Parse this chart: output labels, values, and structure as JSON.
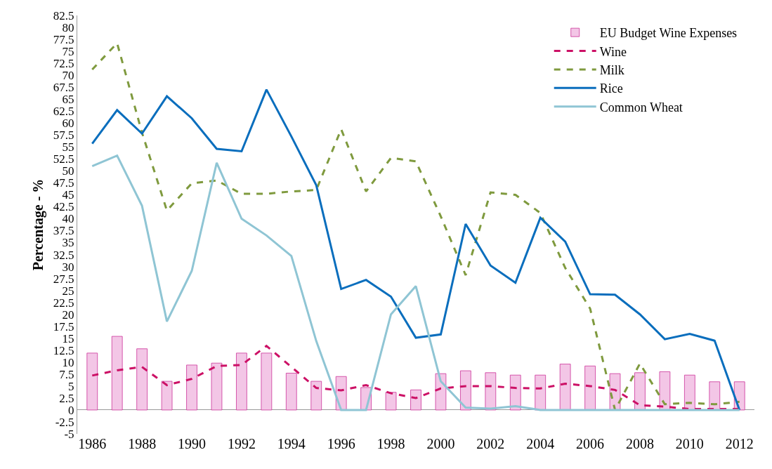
{
  "chart_data": {
    "type": "line",
    "ylabel": "Percentage - %",
    "x": [
      1986,
      1987,
      1988,
      1989,
      1990,
      1991,
      1992,
      1993,
      1994,
      1995,
      1996,
      1997,
      1998,
      1999,
      2000,
      2001,
      2002,
      2003,
      2004,
      2005,
      2006,
      2007,
      2008,
      2009,
      2010,
      2011,
      2012
    ],
    "xlim": [
      1985.4,
      2012.6
    ],
    "xticks": [
      1986,
      1988,
      1990,
      1992,
      1994,
      1996,
      1998,
      2000,
      2002,
      2004,
      2006,
      2008,
      2010,
      2012
    ],
    "ylim": [
      -5,
      82.5
    ],
    "yticks": [
      -5,
      -2.5,
      0,
      2.5,
      5,
      7.5,
      10,
      12.5,
      15,
      17.5,
      20,
      22.5,
      25,
      27.5,
      30,
      32.5,
      35,
      37.5,
      40,
      42.5,
      45,
      47.5,
      50,
      52.5,
      55,
      57.5,
      60,
      62.5,
      65,
      67.5,
      70,
      72.5,
      75,
      77.5,
      80,
      82.5
    ],
    "grid": false,
    "legend": "top right",
    "series": [
      {
        "name": "EU Budget Wine Expenses",
        "type": "bar",
        "color": "#f3c6e6",
        "values": [
          11.9,
          15.4,
          12.8,
          6.0,
          9.4,
          9.8,
          11.9,
          11.9,
          7.7,
          6.0,
          7.0,
          4.7,
          3.7,
          4.2,
          7.6,
          8.2,
          7.8,
          7.3,
          7.3,
          9.6,
          9.2,
          7.6,
          7.8,
          8.0,
          7.3,
          5.9,
          5.9
        ]
      },
      {
        "name": "Wine",
        "color": "#cc1166",
        "line_style": "dashed",
        "values": [
          7.2,
          8.3,
          9.0,
          5.2,
          6.5,
          9.2,
          9.4,
          13.4,
          9.0,
          4.6,
          4.1,
          5.2,
          3.5,
          2.5,
          4.5,
          5.0,
          5.0,
          4.6,
          4.5,
          5.5,
          5.0,
          4.2,
          1.0,
          0.7,
          0.2,
          0.2,
          0.2
        ]
      },
      {
        "name": "Milk",
        "color": "#7f9a3e",
        "line_style": "dashed",
        "values": [
          71.2,
          76.7,
          58.0,
          41.7,
          47.4,
          48.0,
          45.2,
          45.2,
          45.7,
          46.0,
          58.7,
          45.7,
          52.7,
          52.0,
          40.5,
          28.2,
          45.5,
          45.0,
          41.2,
          29.7,
          21.2,
          0,
          9.7,
          1.2,
          1.5,
          1.2,
          1.7
        ]
      },
      {
        "name": "Rice",
        "color": "#0a6ebd",
        "line_style": "solid",
        "values": [
          55.7,
          62.7,
          57.8,
          65.6,
          61.0,
          54.6,
          54.1,
          67.0,
          57.2,
          47.0,
          25.3,
          27.2,
          23.7,
          15.1,
          15.8,
          38.9,
          30.2,
          26.6,
          40.2,
          35.2,
          24.2,
          24.1,
          20.0,
          14.8,
          15.9,
          14.5,
          0
        ]
      },
      {
        "name": "Common Wheat",
        "color": "#8fc5d4",
        "line_style": "solid",
        "values": [
          51.0,
          53.2,
          42.7,
          18.5,
          29.1,
          51.7,
          40.0,
          36.5,
          32.2,
          14.4,
          0,
          0,
          20.0,
          25.9,
          6.0,
          0.5,
          0.3,
          0.8,
          0,
          0,
          0,
          0,
          0,
          0,
          0,
          0,
          0
        ]
      }
    ]
  }
}
